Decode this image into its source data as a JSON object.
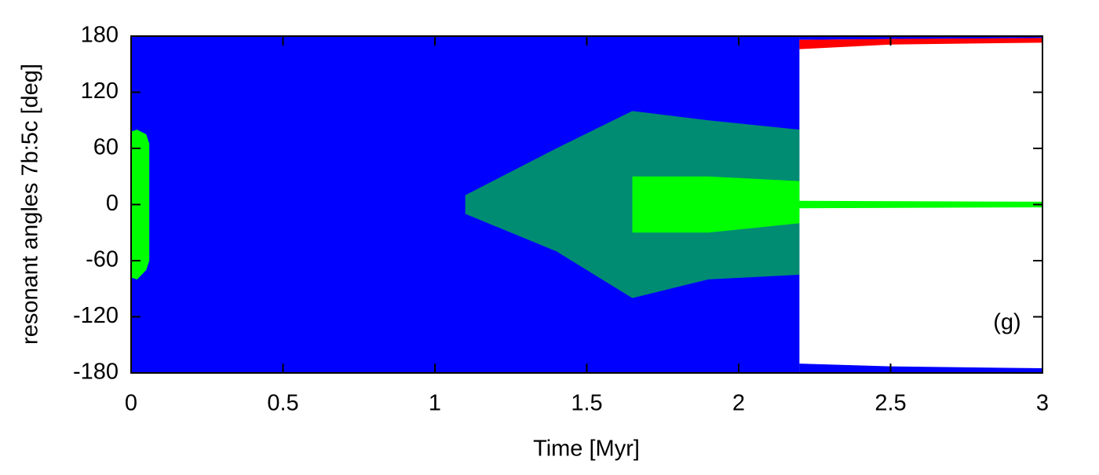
{
  "chart_data": {
    "type": "area-band",
    "xlabel": "Time [Myr]",
    "ylabel": "resonant angles 7b:5c [deg]",
    "annotation": "(g)",
    "xlim": [
      0,
      3
    ],
    "ylim": [
      -180,
      180
    ],
    "xticks": [
      0,
      0.5,
      1,
      1.5,
      2,
      2.5,
      3
    ],
    "yticks": [
      -180,
      -120,
      -60,
      0,
      60,
      120,
      180
    ],
    "series": [
      {
        "color": "#0000ff",
        "x": [
          0,
          2.2
        ],
        "lower": [
          -180,
          -180
        ],
        "upper": [
          180,
          180
        ]
      },
      {
        "color": "#0000ff",
        "x": [
          2.2,
          3
        ],
        "lower": [
          176,
          178
        ],
        "upper": [
          180,
          180
        ]
      },
      {
        "color": "#0000ff",
        "x": [
          2.2,
          2.5,
          3
        ],
        "lower": [
          -180,
          -180,
          -180
        ],
        "upper": [
          -170,
          -173,
          -175
        ]
      },
      {
        "color": "#ff0000",
        "x": [
          2.2,
          2.5,
          3
        ],
        "lower": [
          166,
          171,
          173
        ],
        "upper": [
          176,
          177,
          178
        ]
      },
      {
        "color": "#00ff00",
        "x": [
          0,
          0.02,
          0.05,
          0.06
        ],
        "lower": [
          -78,
          -80,
          -70,
          -60
        ],
        "upper": [
          78,
          80,
          75,
          65
        ]
      },
      {
        "color": "#00ff00",
        "x": [
          1.1,
          1.4,
          1.65,
          1.9,
          2.2
        ],
        "lower": [
          -10,
          -50,
          -100,
          -80,
          -75
        ],
        "upper": [
          10,
          60,
          100,
          90,
          80
        ]
      },
      {
        "color": "#00ff00",
        "x": [
          1.65,
          1.9,
          2.2
        ],
        "lower": [
          -30,
          -30,
          -20
        ],
        "upper": [
          30,
          30,
          25
        ]
      },
      {
        "color": "#00ff00",
        "x": [
          2.2,
          3
        ],
        "lower": [
          -4,
          -3
        ],
        "upper": [
          4,
          3
        ]
      }
    ]
  }
}
